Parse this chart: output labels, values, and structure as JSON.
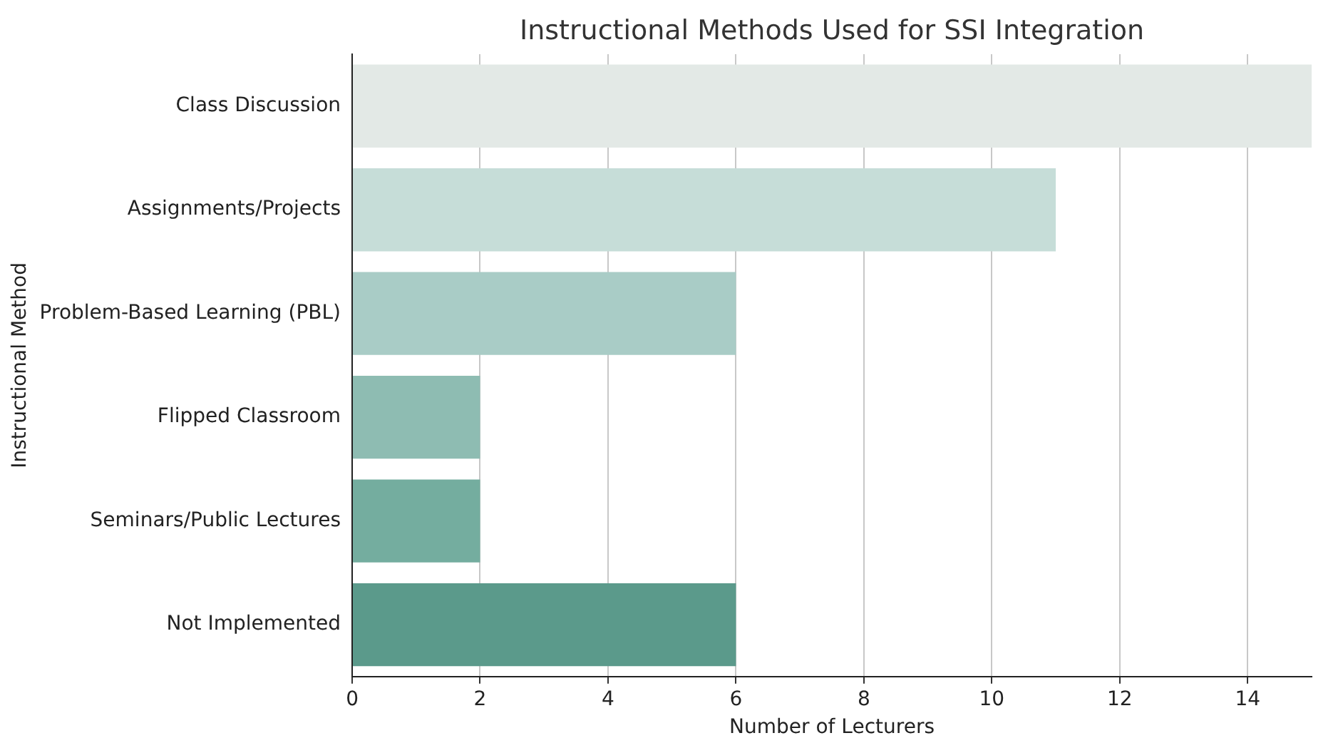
{
  "chart_data": {
    "type": "bar",
    "orientation": "horizontal",
    "title": "Instructional Methods Used for SSI Integration",
    "xlabel": "Number of Lecturers",
    "ylabel": "Instructional Method",
    "categories": [
      "Class Discussion",
      "Assignments/Projects",
      "Problem-Based Learning (PBL)",
      "Flipped Classroom",
      "Seminars/Public Lectures",
      "Not Implemented"
    ],
    "values": [
      15,
      11,
      6,
      2,
      2,
      6
    ],
    "colors": [
      "#e3e9e6",
      "#c6ddd8",
      "#a9ccc6",
      "#8ebcb2",
      "#74ad9f",
      "#5b9a8b"
    ],
    "xlim": [
      0,
      15
    ],
    "xticks": [
      0,
      2,
      4,
      6,
      8,
      10,
      12,
      14
    ],
    "grid": "x",
    "legend": false
  }
}
